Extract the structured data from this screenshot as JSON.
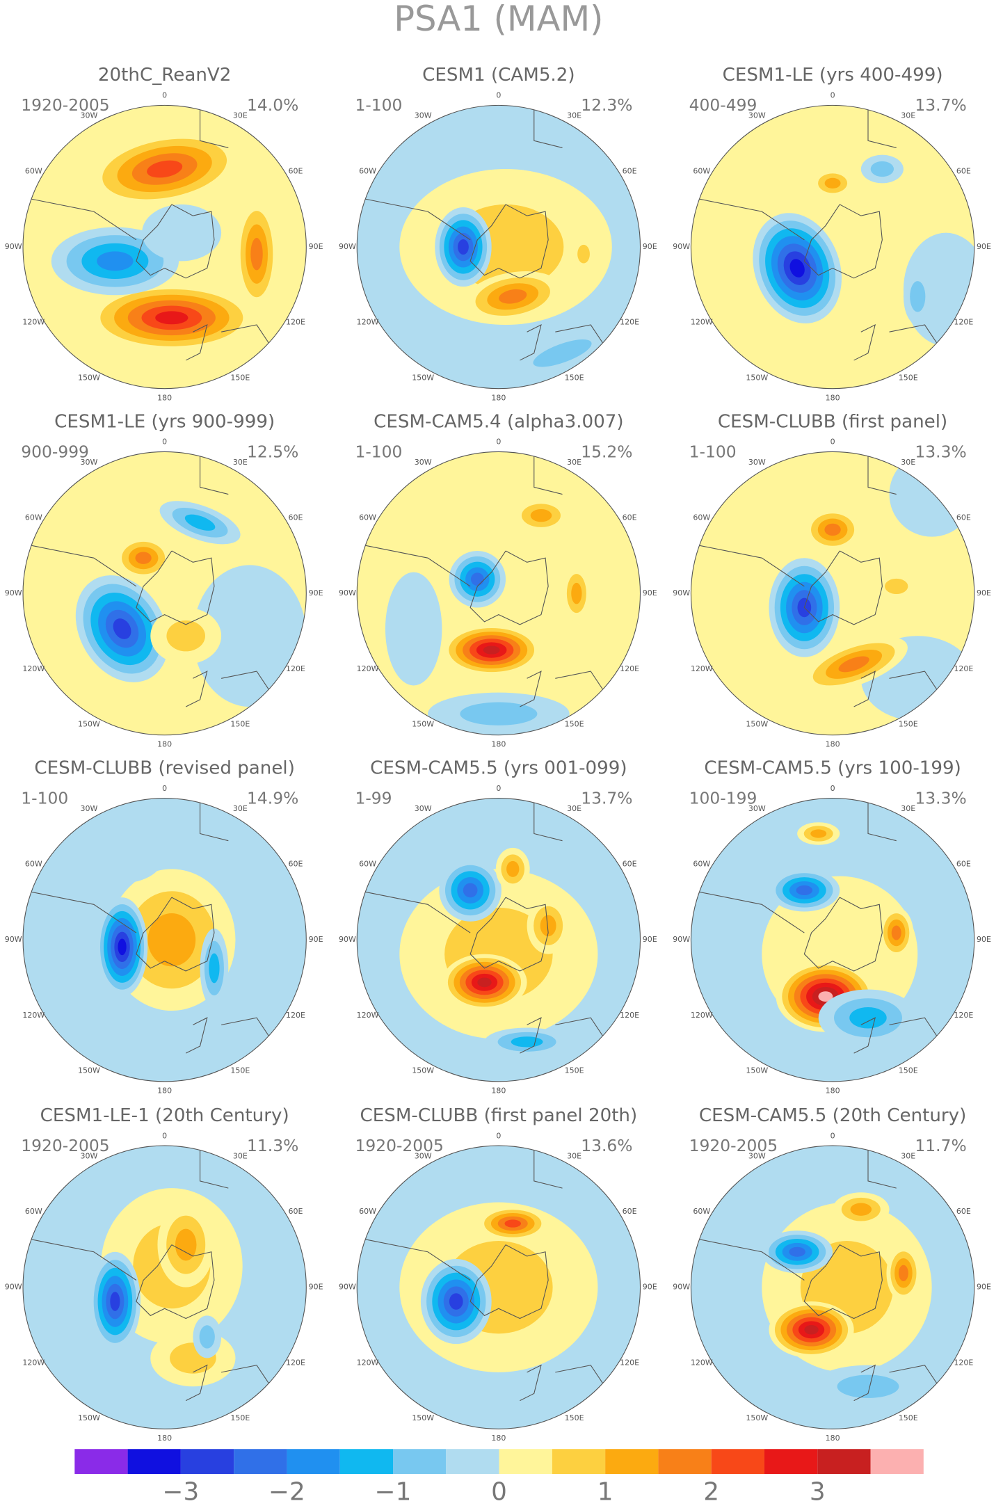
{
  "title": "PSA1 (MAM)",
  "panels": [
    {
      "title": "20thC_ReanV2",
      "period": "1920-2005",
      "variance": "14.0%"
    },
    {
      "title": "CESM1 (CAM5.2)",
      "period": "1-100",
      "variance": "12.3%"
    },
    {
      "title": "CESM1-LE (yrs 400-499)",
      "period": "400-499",
      "variance": "13.7%"
    },
    {
      "title": "CESM1-LE (yrs 900-999)",
      "period": "900-999",
      "variance": "12.5%"
    },
    {
      "title": "CESM-CAM5.4 (alpha3.007)",
      "period": "1-100",
      "variance": "15.2%"
    },
    {
      "title": "CESM-CLUBB (first panel)",
      "period": "1-100",
      "variance": "13.3%"
    },
    {
      "title": "CESM-CLUBB (revised panel)",
      "period": "1-100",
      "variance": "14.9%"
    },
    {
      "title": "CESM-CAM5.5 (yrs 001-099)",
      "period": "1-99",
      "variance": "13.7%"
    },
    {
      "title": "CESM-CAM5.5 (yrs 100-199)",
      "period": "100-199",
      "variance": "13.3%"
    },
    {
      "title": "CESM1-LE-1 (20th Century)",
      "period": "1920-2005",
      "variance": "11.3%"
    },
    {
      "title": "CESM-CLUBB (first panel 20th)",
      "period": "1920-2005",
      "variance": "13.6%"
    },
    {
      "title": "CESM-CAM5.5 (20th Century)",
      "period": "1920-2005",
      "variance": "11.7%"
    }
  ],
  "longitude_labels": [
    "0",
    "30E",
    "60E",
    "90E",
    "120E",
    "150E",
    "180",
    "150W",
    "120W",
    "90W",
    "60W",
    "30W"
  ],
  "colorbar": {
    "range": [
      -4,
      4
    ],
    "colors": [
      "#8a2be8",
      "#1010e0",
      "#2840e0",
      "#3070e8",
      "#2090f0",
      "#10b8f0",
      "#78c8f0",
      "#b0dcf0",
      "#fff59a",
      "#fdd040",
      "#fcaa10",
      "#f88018",
      "#f84818",
      "#e81818",
      "#c82020",
      "#fcb0b0"
    ],
    "ticks": [
      {
        "value": -3,
        "label": "−3"
      },
      {
        "value": -2,
        "label": "−2"
      },
      {
        "value": -1,
        "label": "−1"
      },
      0,
      1,
      2,
      3
    ]
  }
}
